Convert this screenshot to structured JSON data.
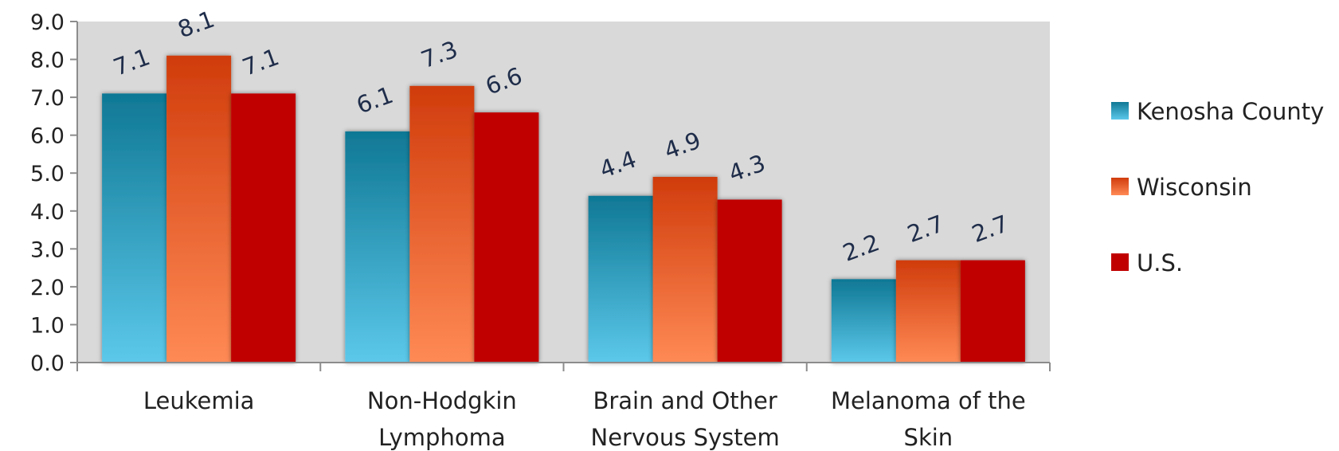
{
  "chart_data": {
    "type": "bar",
    "title": "",
    "xlabel": "",
    "ylabel": "",
    "categories": [
      [
        "Leukemia"
      ],
      [
        "Non-Hodgkin",
        "Lymphoma"
      ],
      [
        "Brain and Other",
        "Nervous System"
      ],
      [
        "Melanoma of the",
        "Skin"
      ]
    ],
    "series": [
      {
        "name": "Kenosha County",
        "values": [
          7.1,
          6.1,
          4.4,
          2.2
        ],
        "color": "#1e9ac0",
        "gradient": [
          "#0f7895",
          "#5cc8ea"
        ]
      },
      {
        "name": "Wisconsin",
        "values": [
          8.1,
          7.3,
          4.9,
          2.7
        ],
        "color": "#f0642a",
        "gradient": [
          "#d03c0c",
          "#ff8a55"
        ]
      },
      {
        "name": "U.S.",
        "values": [
          7.1,
          6.6,
          4.3,
          2.7
        ],
        "color": "#c00000",
        "gradient": [
          "#c00000",
          "#c00000"
        ]
      }
    ],
    "data_labels": [
      [
        "7.1",
        "8.1",
        "7.1"
      ],
      [
        "6.1",
        "7.3",
        "6.6"
      ],
      [
        "4.4",
        "4.9",
        "4.3"
      ],
      [
        "2.2",
        "2.7",
        "2.7"
      ]
    ],
    "ylim": [
      0,
      9
    ],
    "yticks": [
      "0.0",
      "1.0",
      "2.0",
      "3.0",
      "4.0",
      "5.0",
      "6.0",
      "7.0",
      "8.0",
      "9.0"
    ],
    "plot_background": "#d9d9d9",
    "grid": false,
    "legend_position": "right"
  }
}
